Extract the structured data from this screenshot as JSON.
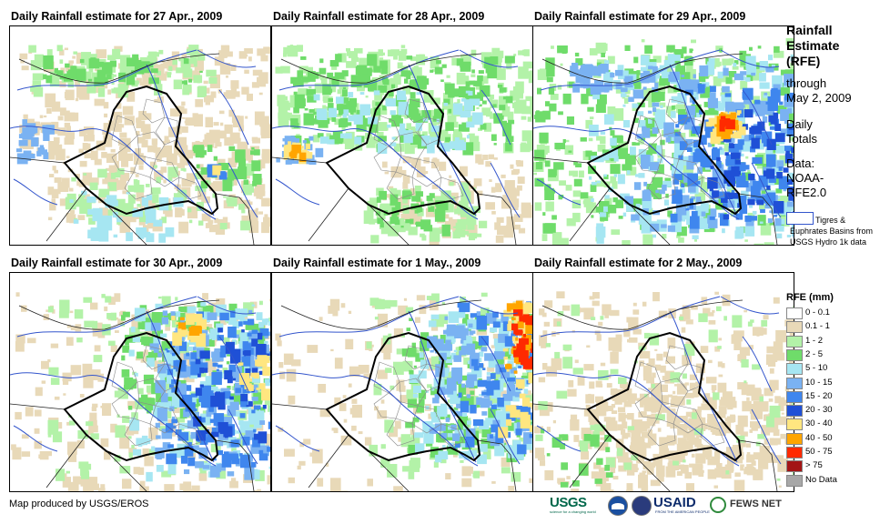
{
  "panels": [
    {
      "id": "p1",
      "title": "Daily Rainfall estimate for 27 Apr., 2009",
      "pattern": "moderate-north-southwest"
    },
    {
      "id": "p2",
      "title": "Daily Rainfall estimate for 28 Apr., 2009",
      "pattern": "north-green-west-hotspot"
    },
    {
      "id": "p3",
      "title": "Daily Rainfall estimate for 29 Apr., 2009",
      "pattern": "heavy-east"
    },
    {
      "id": "p4",
      "title": "Daily Rainfall estimate for 30 Apr., 2009",
      "pattern": "heavy-northeast"
    },
    {
      "id": "p5",
      "title": "Daily Rainfall estimate for 1 May., 2009",
      "pattern": "east-edge-heavy"
    },
    {
      "id": "p6",
      "title": "Daily Rainfall estimate for 2 May., 2009",
      "pattern": "dry-trace"
    }
  ],
  "sidebar": {
    "title_lines": [
      "Rainfall",
      "Estimate",
      "(RFE)"
    ],
    "through_lines": [
      "through",
      "May 2, 2009"
    ],
    "daily_lines": [
      "Daily",
      "Totals"
    ],
    "data_lines": [
      "Data:",
      "NOAA-",
      "RFE2.0"
    ],
    "basin_label": "Tigres & Euphrates Basins from USGS Hydro 1k data",
    "basin_color": "#3355cc",
    "rfe_title": "RFE (mm)"
  },
  "legend": [
    {
      "label": "0 - 0.1",
      "color": "#ffffff"
    },
    {
      "label": "0.1 - 1",
      "color": "#e8d9b8"
    },
    {
      "label": "1 - 2",
      "color": "#b3f2a8"
    },
    {
      "label": "2 - 5",
      "color": "#6fdc6a"
    },
    {
      "label": "5 - 10",
      "color": "#a6e6f2"
    },
    {
      "label": "10 - 15",
      "color": "#7ab2f2"
    },
    {
      "label": "15 - 20",
      "color": "#3f86ee"
    },
    {
      "label": "20 - 30",
      "color": "#1f50d6"
    },
    {
      "label": "30 - 40",
      "color": "#ffe680"
    },
    {
      "label": "40 - 50",
      "color": "#ffa500"
    },
    {
      "label": "50 - 75",
      "color": "#ff2a00"
    },
    {
      "label": "> 75",
      "color": "#a31515"
    },
    {
      "label": "No Data",
      "color": "#a8a8a8"
    }
  ],
  "footer": {
    "credit": "Map produced by USGS/EROS",
    "logo_usgs": "USGS",
    "logo_usgs_tag": "science for a changing world",
    "logo_usaid": "USAID",
    "logo_usaid_tag": "FROM THE AMERICAN PEOPLE",
    "logo_fews": "FEWS NET"
  },
  "colors": {
    "border": "#000000",
    "river": "#3355cc",
    "province": "#888888"
  }
}
